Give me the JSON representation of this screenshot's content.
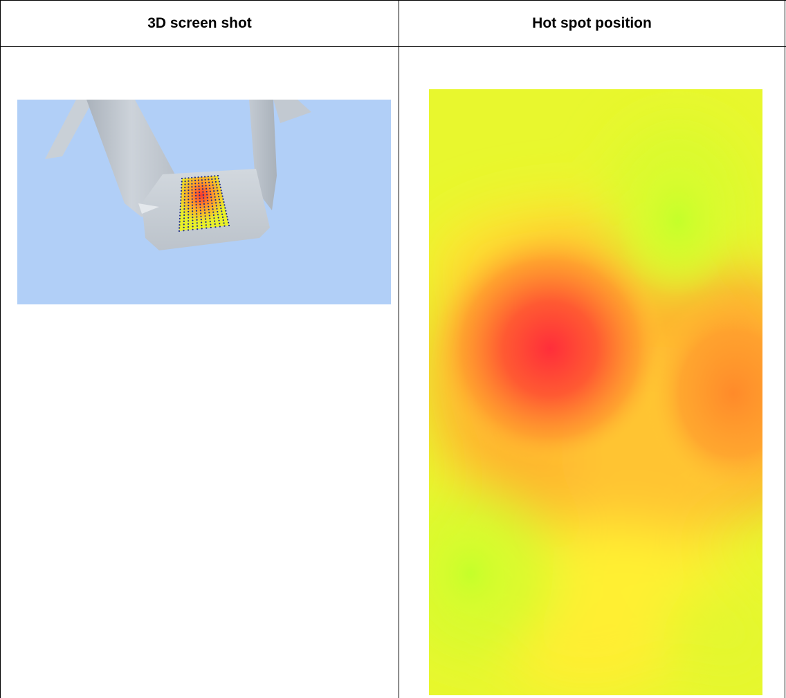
{
  "table": {
    "columns": [
      {
        "header": "3D screen shot"
      },
      {
        "header": "Hot spot position"
      }
    ]
  },
  "screenshot_3d": {
    "background_color": "#b1cff7",
    "model_color": "#c6cdd5",
    "grid_dot_color": "#1d2a8c"
  },
  "heatmap": {
    "scale_low_color": "#c8ff2a",
    "scale_mid_color": "#ffee33",
    "scale_high_color": "#ff2e3a"
  }
}
